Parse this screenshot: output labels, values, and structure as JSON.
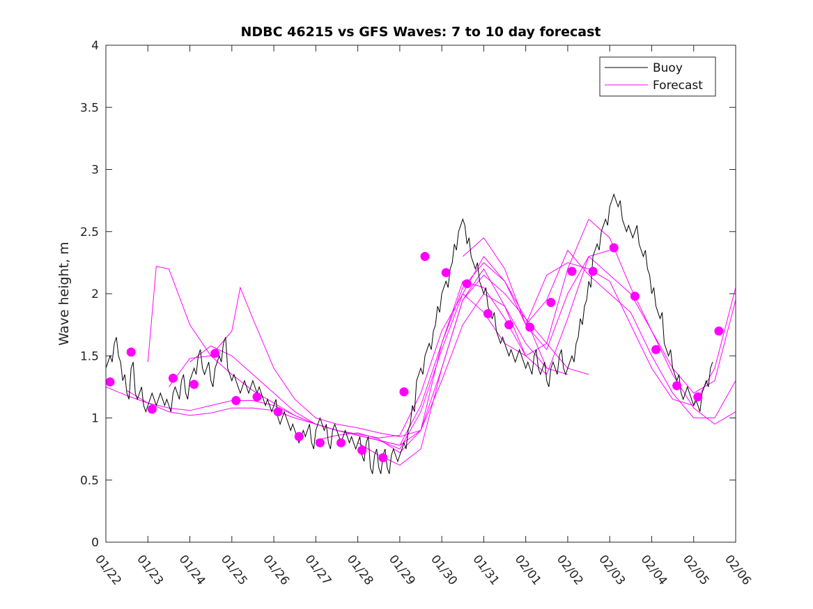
{
  "chart_data": {
    "type": "line",
    "title": "NDBC 46215 vs GFS Waves: 7 to 10 day forecast",
    "xlabel": "",
    "ylabel": "Wave height, m",
    "xlim": [
      0,
      15
    ],
    "ylim": [
      0,
      4
    ],
    "x_ticks": [
      0,
      1,
      2,
      3,
      4,
      5,
      6,
      7,
      8,
      9,
      10,
      11,
      12,
      13,
      14,
      15
    ],
    "x_tick_labels": [
      "01/22",
      "01/23",
      "01/24",
      "01/25",
      "01/26",
      "01/27",
      "01/28",
      "01/29",
      "01/30",
      "01/31",
      "02/01",
      "02/02",
      "02/03",
      "02/04",
      "02/05",
      "02/06"
    ],
    "y_ticks": [
      0,
      0.5,
      1,
      1.5,
      2,
      2.5,
      3,
      3.5,
      4
    ],
    "y_tick_labels": [
      "0",
      "0.5",
      "1",
      "1.5",
      "2",
      "2.5",
      "3",
      "3.5",
      "4"
    ],
    "legend": {
      "position": "top-right",
      "entries": [
        {
          "label": "Buoy",
          "color": "#000000"
        },
        {
          "label": "Forecast",
          "color": "#ff00ff"
        }
      ]
    },
    "colors": {
      "buoy": "#000000",
      "forecast": "#ff00ff",
      "axes": "#262626"
    },
    "buoy": {
      "name": "Buoy",
      "x": [
        0,
        0.1,
        0.2,
        0.3,
        0.4,
        0.5,
        0.6,
        0.7,
        0.8,
        0.9,
        1.0,
        1.1,
        1.2,
        1.3,
        1.4,
        1.5,
        1.6,
        1.7,
        1.8,
        1.9,
        2.0,
        2.1,
        2.2,
        2.3,
        2.4,
        2.5,
        2.6,
        2.7,
        2.8,
        2.9,
        3.0,
        3.1,
        3.2,
        3.3,
        3.4,
        3.5,
        3.6,
        3.7,
        3.8,
        3.9,
        4.0,
        4.1,
        4.2,
        4.3,
        4.4,
        4.5,
        4.6,
        4.7,
        4.8,
        4.9,
        5.0,
        5.1,
        5.2,
        5.3,
        5.4,
        5.5,
        5.6,
        5.7,
        5.8,
        5.9,
        6.0,
        6.1,
        6.2,
        6.3,
        6.4,
        6.5,
        6.6,
        6.7,
        6.8,
        6.9,
        7.0,
        7.1,
        7.2,
        7.3,
        7.4,
        7.5,
        7.6,
        7.7,
        7.8,
        7.9,
        8.0,
        8.1,
        8.2,
        8.3,
        8.4,
        8.5,
        8.6,
        8.7,
        8.8,
        8.9,
        9.0,
        9.1,
        9.2,
        9.3,
        9.4,
        9.5,
        9.6,
        9.7,
        9.8,
        9.9,
        10.0,
        10.1,
        10.2,
        10.3,
        10.4,
        10.5,
        10.6,
        10.7,
        10.8,
        10.9,
        11.0,
        11.1,
        11.2,
        11.3,
        11.4,
        11.5,
        11.6,
        11.7,
        11.8,
        11.9,
        12.0,
        12.1,
        12.2,
        12.3,
        12.4,
        12.5,
        12.6,
        12.7,
        12.8,
        12.9,
        13.0,
        13.1,
        13.2,
        13.3,
        13.4,
        13.5,
        13.6,
        13.7,
        13.8,
        13.9,
        14.0,
        14.1,
        14.2,
        14.3,
        14.4
      ],
      "values": [
        1.4,
        1.5,
        1.6,
        1.5,
        1.3,
        1.2,
        1.4,
        1.2,
        1.2,
        1.1,
        1.1,
        1.2,
        1.1,
        1.2,
        1.1,
        1.1,
        1.2,
        1.2,
        1.3,
        1.2,
        1.3,
        1.4,
        1.5,
        1.4,
        1.4,
        1.3,
        1.4,
        1.5,
        1.6,
        1.4,
        1.3,
        1.3,
        1.2,
        1.3,
        1.2,
        1.3,
        1.2,
        1.2,
        1.1,
        1.1,
        1.1,
        1.0,
        1.0,
        1.0,
        0.9,
        0.9,
        0.8,
        0.9,
        0.9,
        0.8,
        0.9,
        1.0,
        0.9,
        0.8,
        0.9,
        0.9,
        0.8,
        0.9,
        0.8,
        0.8,
        0.8,
        0.7,
        0.8,
        0.6,
        0.7,
        0.6,
        0.7,
        0.6,
        0.7,
        0.7,
        0.7,
        0.8,
        0.9,
        1.1,
        1.3,
        1.4,
        1.5,
        1.6,
        1.7,
        1.9,
        2.0,
        2.1,
        2.2,
        2.4,
        2.5,
        2.6,
        2.4,
        2.3,
        2.2,
        2.1,
        2.0,
        1.9,
        1.8,
        1.7,
        1.6,
        1.6,
        1.5,
        1.5,
        1.5,
        1.5,
        1.4,
        1.4,
        1.5,
        1.4,
        1.4,
        1.3,
        1.4,
        1.4,
        1.5,
        1.4,
        1.4,
        1.5,
        1.6,
        1.8,
        1.9,
        2.1,
        2.3,
        2.4,
        2.5,
        2.6,
        2.7,
        2.8,
        2.7,
        2.6,
        2.5,
        2.5,
        2.5,
        2.4,
        2.3,
        2.2,
        2.0,
        1.9,
        1.8,
        1.6,
        1.5,
        1.4,
        1.3,
        1.2,
        1.2,
        1.2,
        1.1,
        1.1,
        1.2,
        1.3,
        1.4
      ]
    },
    "forecast_runs": [
      {
        "x": [
          0,
          0.5,
          1,
          1.5,
          2,
          2.5,
          3,
          3.5,
          4,
          4.5,
          5,
          5.5,
          6,
          6.5,
          7,
          7.5,
          8,
          8.5,
          9,
          9.5,
          10
        ],
        "values": [
          1.25,
          1.18,
          1.12,
          1.08,
          1.06,
          1.1,
          1.14,
          1.14,
          1.1,
          1.02,
          0.95,
          0.9,
          0.87,
          0.84,
          0.86,
          1.2,
          1.7,
          2.0,
          1.85,
          1.6,
          1.5
        ]
      },
      {
        "x": [
          0.5,
          1,
          1.5,
          2,
          2.5,
          3,
          3.5,
          4,
          4.5,
          5,
          5.5,
          6,
          6.5,
          7,
          7.5,
          8,
          8.5,
          9,
          9.5,
          10,
          10.5
        ],
        "values": [
          1.22,
          1.12,
          1.05,
          1.02,
          1.04,
          1.08,
          1.08,
          1.06,
          1.0,
          0.95,
          0.9,
          0.86,
          0.82,
          0.78,
          0.9,
          1.3,
          1.75,
          2.0,
          1.9,
          1.6,
          1.4
        ]
      },
      {
        "x": [
          1,
          1.2,
          1.5,
          2,
          2.5,
          3,
          3.5,
          4,
          4.5,
          5,
          5.5,
          6,
          6.5,
          7,
          7.5,
          8,
          8.5,
          9,
          9.5,
          10,
          10.5,
          11
        ],
        "values": [
          1.45,
          2.22,
          2.2,
          1.75,
          1.5,
          1.35,
          1.22,
          1.12,
          1.02,
          0.95,
          0.9,
          0.86,
          0.82,
          0.75,
          1.05,
          1.55,
          2.0,
          2.3,
          2.1,
          1.8,
          1.4,
          1.35
        ]
      },
      {
        "x": [
          1.5,
          2,
          2.5,
          3,
          3.2,
          3.5,
          4,
          4.5,
          5,
          5.5,
          6,
          6.5,
          7,
          7.5,
          8,
          8.5,
          9,
          9.5,
          10,
          10.5,
          11,
          11.5
        ],
        "values": [
          1.25,
          1.48,
          1.5,
          1.7,
          2.05,
          1.8,
          1.4,
          1.15,
          1.0,
          0.95,
          0.92,
          0.88,
          0.85,
          0.9,
          1.4,
          1.95,
          2.15,
          2.0,
          1.8,
          1.6,
          1.4,
          1.35
        ]
      },
      {
        "x": [
          2,
          2.5,
          3,
          3.5,
          4,
          4.5,
          5,
          5.5,
          6,
          6.5,
          7,
          7.5,
          8,
          8.5,
          9,
          9.5,
          10,
          10.5,
          11,
          11.5,
          12
        ],
        "values": [
          1.45,
          1.58,
          1.5,
          1.35,
          1.2,
          1.05,
          0.95,
          0.9,
          0.86,
          0.82,
          0.78,
          1.1,
          1.6,
          2.05,
          2.25,
          2.1,
          1.75,
          1.55,
          2.0,
          2.3,
          2.35
        ]
      },
      {
        "x": [
          5,
          5.5,
          6,
          6.5,
          7,
          7.5,
          8,
          8.5,
          9,
          9.5,
          10,
          10.5,
          11,
          11.5,
          12,
          12.5,
          13,
          13.5,
          14,
          14.5,
          15
        ],
        "values": [
          0.82,
          0.86,
          0.88,
          0.83,
          0.72,
          0.9,
          1.6,
          2.1,
          2.05,
          1.8,
          1.5,
          1.35,
          1.8,
          2.3,
          2.15,
          2.0,
          1.7,
          1.4,
          1.2,
          1.3,
          1.95
        ]
      },
      {
        "x": [
          6,
          6.5,
          7,
          7.5,
          8,
          8.5,
          9,
          9.5,
          10,
          10.5,
          11,
          11.5,
          12,
          12.5,
          13,
          13.5,
          14,
          14.5,
          15
        ],
        "values": [
          0.8,
          0.7,
          0.62,
          0.75,
          1.4,
          1.95,
          2.2,
          1.9,
          1.5,
          1.6,
          2.2,
          2.6,
          2.45,
          2.05,
          1.7,
          1.35,
          1.08,
          0.95,
          1.05
        ]
      },
      {
        "x": [
          8.5,
          9,
          9.5,
          10,
          10.5,
          11,
          11.5,
          12,
          12.5,
          13,
          13.5,
          14,
          14.5,
          15
        ],
        "values": [
          2.3,
          2.45,
          2.2,
          1.75,
          1.95,
          2.35,
          2.15,
          2.0,
          1.85,
          1.5,
          1.2,
          1.0,
          1.0,
          1.3
        ]
      },
      {
        "x": [
          10,
          10.5,
          11,
          11.5,
          12,
          12.5,
          13,
          13.5,
          14,
          14.5,
          15
        ],
        "values": [
          1.75,
          2.15,
          2.25,
          2.2,
          2.1,
          1.75,
          1.4,
          1.15,
          1.1,
          1.4,
          2.05
        ]
      }
    ],
    "forecast_points": {
      "x": [
        0.1,
        0.6,
        1.1,
        1.6,
        2.1,
        2.6,
        3.1,
        3.6,
        4.1,
        4.6,
        5.1,
        5.6,
        6.1,
        6.6,
        7.1,
        7.6,
        8.1,
        8.6,
        9.1,
        9.6,
        10.1,
        10.6,
        11.1,
        11.6,
        12.1,
        12.6,
        13.1,
        13.6,
        14.1,
        14.6
      ],
      "values": [
        1.29,
        1.53,
        1.07,
        1.32,
        1.27,
        1.52,
        1.14,
        1.17,
        1.05,
        0.85,
        0.8,
        0.8,
        0.74,
        0.68,
        1.21,
        2.3,
        2.17,
        2.08,
        1.84,
        1.75,
        1.73,
        1.93,
        2.18,
        2.18,
        2.37,
        1.98,
        1.55,
        1.26,
        1.17,
        1.7
      ]
    }
  }
}
